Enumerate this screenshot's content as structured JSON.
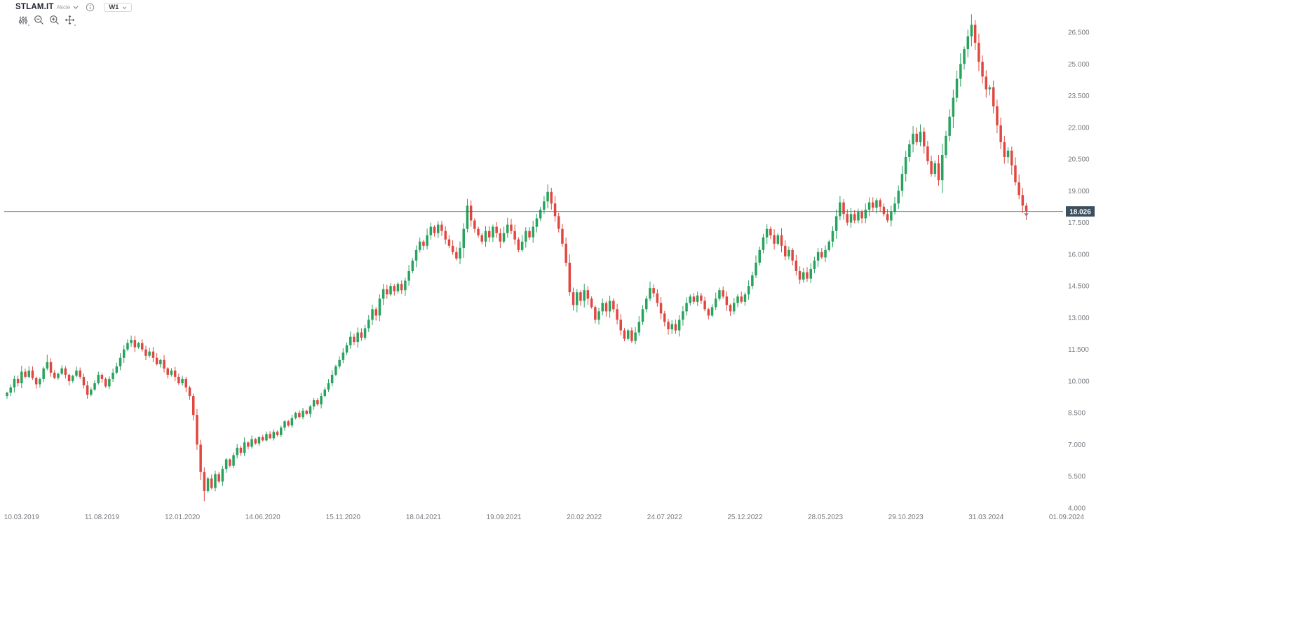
{
  "header": {
    "symbol": "STLAM.IT",
    "instrument_type": "Akcie",
    "timeframe": "W1"
  },
  "toolbar": {
    "buttons": [
      {
        "name": "indicator-settings",
        "icon": "sliders"
      },
      {
        "name": "zoom-out",
        "icon": "magnifier-minus"
      },
      {
        "name": "zoom-in",
        "icon": "magnifier-plus"
      },
      {
        "name": "move-chart",
        "icon": "crosshair-arrows"
      }
    ]
  },
  "colors": {
    "candle_up": "#27a35f",
    "candle_down": "#e0483f",
    "price_line": "#49606e",
    "price_badge_bg": "#3c4f5d",
    "price_badge_text": "#ffffff",
    "axis_text": "#75797e",
    "marker": "#7b8a94"
  },
  "chart_data": {
    "type": "candlestick",
    "symbol": "STLAM.IT",
    "timeframe": "W1",
    "title": "STLAM.IT weekly candlestick chart",
    "current_price": 18.026,
    "current_price_label": "18.026",
    "ylim": [
      4.0,
      27.6
    ],
    "grid": false,
    "y_tick_labels": [
      "26.500",
      "25.000",
      "23.500",
      "22.000",
      "20.500",
      "19.000",
      "17.500",
      "16.000",
      "14.500",
      "13.000",
      "11.500",
      "10.000",
      "8.500",
      "7.000",
      "5.500",
      "4.000"
    ],
    "y_tick_values": [
      26.5,
      25,
      23.5,
      22,
      20.5,
      19,
      17.5,
      16,
      14.5,
      13,
      11.5,
      10,
      8.5,
      7,
      5.5,
      4
    ],
    "x_tick_labels": [
      "10.03.2019",
      "11.08.2019",
      "12.01.2020",
      "14.06.2020",
      "15.11.2020",
      "18.04.2021",
      "19.09.2021",
      "20.02.2022",
      "24.07.2022",
      "25.12.2022",
      "28.05.2023",
      "29.10.2023",
      "31.03.2024",
      "01.09.2024"
    ],
    "weeks_between_labels": 22,
    "first_label_week_index": 4,
    "first_open": 9.3,
    "open_rule": "previous_close",
    "closes": [
      9.45,
      9.7,
      10.1,
      9.9,
      10.45,
      10.2,
      10.5,
      10.15,
      9.85,
      10.1,
      10.6,
      10.9,
      10.4,
      10.15,
      10.35,
      10.6,
      10.3,
      10.0,
      10.25,
      10.5,
      10.2,
      9.8,
      9.35,
      9.6,
      9.9,
      10.3,
      10.1,
      9.75,
      10.1,
      10.4,
      10.7,
      11.1,
      11.5,
      11.8,
      11.95,
      11.6,
      11.8,
      11.5,
      11.2,
      11.4,
      11.1,
      10.8,
      11.0,
      10.6,
      10.3,
      10.5,
      10.2,
      9.9,
      10.1,
      9.7,
      9.3,
      8.4,
      7.0,
      5.7,
      4.8,
      5.4,
      4.95,
      5.6,
      5.25,
      5.85,
      6.3,
      6.0,
      6.5,
      6.85,
      6.6,
      7.1,
      6.9,
      7.25,
      7.05,
      7.35,
      7.2,
      7.5,
      7.3,
      7.6,
      7.45,
      7.8,
      8.1,
      7.9,
      8.25,
      8.5,
      8.3,
      8.6,
      8.45,
      8.8,
      9.1,
      8.9,
      9.3,
      9.6,
      9.9,
      10.3,
      10.7,
      11.0,
      11.35,
      11.7,
      12.1,
      11.85,
      12.3,
      12.05,
      12.5,
      12.9,
      13.4,
      13.1,
      13.9,
      14.35,
      14.1,
      14.5,
      14.25,
      14.6,
      14.3,
      14.75,
      15.2,
      15.7,
      16.2,
      16.6,
      16.4,
      16.9,
      17.3,
      17.0,
      17.4,
      17.1,
      16.7,
      16.4,
      16.1,
      15.8,
      16.3,
      17.2,
      18.3,
      17.6,
      17.2,
      16.9,
      16.6,
      17.1,
      16.8,
      17.3,
      17.0,
      16.6,
      17.0,
      17.4,
      17.1,
      16.7,
      16.2,
      16.6,
      17.1,
      16.8,
      17.3,
      17.7,
      18.1,
      18.5,
      18.95,
      18.4,
      17.8,
      17.2,
      16.5,
      15.6,
      14.2,
      13.6,
      14.2,
      13.8,
      14.3,
      13.9,
      13.5,
      12.9,
      13.3,
      13.7,
      13.3,
      13.8,
      13.4,
      12.9,
      12.4,
      12.0,
      12.4,
      11.9,
      12.3,
      12.8,
      13.4,
      13.9,
      14.4,
      14.15,
      13.7,
      13.2,
      12.8,
      12.45,
      12.7,
      12.4,
      12.9,
      13.3,
      13.7,
      14.0,
      13.75,
      14.05,
      13.8,
      13.4,
      13.1,
      13.5,
      13.9,
      14.3,
      14.0,
      13.6,
      13.3,
      13.7,
      14.0,
      13.75,
      14.1,
      14.5,
      15.0,
      15.6,
      16.2,
      16.8,
      17.2,
      16.9,
      16.5,
      16.9,
      16.4,
      15.9,
      16.2,
      15.7,
      15.2,
      14.8,
      15.15,
      14.85,
      15.3,
      15.7,
      16.1,
      15.85,
      16.2,
      16.6,
      17.1,
      17.8,
      18.45,
      17.9,
      17.5,
      17.9,
      17.6,
      18.0,
      17.7,
      18.1,
      18.45,
      18.2,
      18.55,
      18.25,
      17.9,
      17.6,
      18.0,
      18.4,
      19.0,
      19.8,
      20.6,
      21.2,
      21.7,
      21.3,
      21.8,
      21.1,
      20.4,
      19.8,
      20.3,
      19.5,
      20.7,
      21.6,
      22.5,
      23.4,
      24.3,
      25.0,
      25.7,
      26.3,
      26.85,
      26.0,
      25.1,
      24.4,
      23.8,
      23.9,
      23.0,
      22.1,
      21.3,
      20.6,
      20.9,
      20.2,
      19.4,
      18.8,
      18.3,
      18.026
    ],
    "wick_overrides": {
      "11": {
        "h": 11.25
      },
      "34": {
        "h": 12.15
      },
      "54": {
        "l": 4.32
      },
      "126": {
        "h": 18.62
      },
      "148": {
        "h": 19.3
      },
      "228": {
        "h": 18.75
      },
      "264": {
        "h": 27.35
      },
      "279": {
        "l": 17.62
      }
    }
  }
}
